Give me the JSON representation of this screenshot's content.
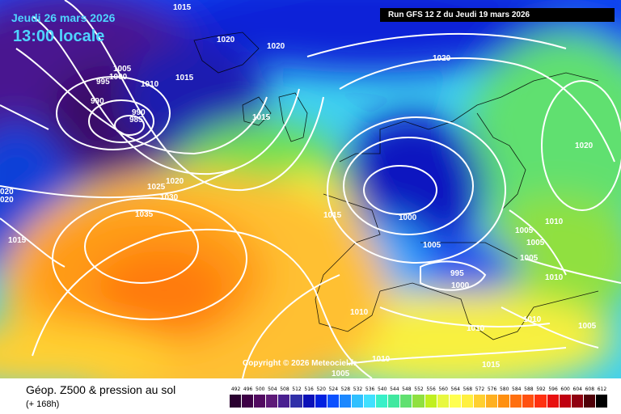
{
  "header": {
    "date_line": "Jeudi 26 mars 2026",
    "time_line": "13:00 locale",
    "run_info": "Run GFS 12 Z du Jeudi 19 mars 2026"
  },
  "copyright": "Copyright © 2026 Meteociel.fr",
  "legend": {
    "title": "Géop. Z500 & pression au sol",
    "subtitle": "(+ 168h)",
    "scale_values": [
      "492",
      "496",
      "500",
      "504",
      "508",
      "512",
      "516",
      "520",
      "524",
      "528",
      "532",
      "536",
      "540",
      "544",
      "548",
      "552",
      "556",
      "560",
      "564",
      "568",
      "572",
      "576",
      "580",
      "584",
      "588",
      "592",
      "596",
      "600",
      "604",
      "608",
      "612"
    ],
    "scale_colors": [
      "#2a0030",
      "#3e0046",
      "#520a60",
      "#5e1a78",
      "#4a2090",
      "#3030a8",
      "#0a10b8",
      "#0020e0",
      "#0a50ff",
      "#1c88ff",
      "#30c0ff",
      "#40e0ff",
      "#38f0c8",
      "#40e8a0",
      "#60e070",
      "#90e040",
      "#c0f020",
      "#e8f840",
      "#ffff50",
      "#fff040",
      "#ffd030",
      "#ffb020",
      "#ff9010",
      "#ff7010",
      "#ff5010",
      "#ff3010",
      "#e81010",
      "#c00010",
      "#900010",
      "#500008",
      "#000000"
    ]
  },
  "isobar_labels": [
    "1015",
    "1020",
    "1020",
    "1020",
    "1005",
    "1000",
    "995",
    "1010",
    "1015",
    "990",
    "990",
    "985",
    "1015",
    "1020",
    "1025",
    "1030",
    "1035",
    "1015",
    "1000",
    "1005",
    "995",
    "1000",
    "1005",
    "1005",
    "1010",
    "1005",
    "1010",
    "1010",
    "1010",
    "1005",
    "1010",
    "1005",
    "1020",
    "1010",
    "1015",
    "020",
    "020",
    "1015"
  ],
  "map": {
    "low_centers": [
      "North Atlantic low 985 hPa",
      "Scandinavian low 1000 hPa"
    ],
    "high_center": "Azores high 1035 hPa"
  }
}
